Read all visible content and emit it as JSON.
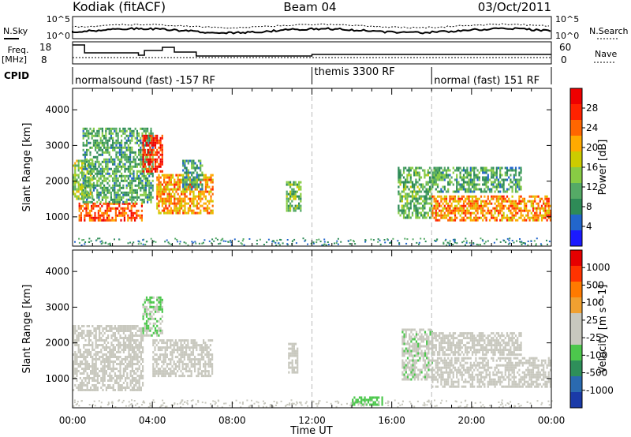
{
  "header": {
    "site": "Kodiak (fitACF)",
    "beam": "Beam 04",
    "date": "03/Oct/2011"
  },
  "status_panel": {
    "nsky_label": "N.Sky",
    "nsearch_label": "N.Search",
    "noise_ticks": [
      "10^5",
      "10^0"
    ],
    "freq_label_line1": "Freq.",
    "freq_label_line2": "[MHz]",
    "freq_ticks": [
      "18",
      "8"
    ],
    "nave_label": "Nave",
    "nave_ticks": [
      "60",
      "0"
    ],
    "cpid_label": "CPID",
    "cpid_segments": [
      {
        "label": "normalsound (fast) -157 RF",
        "start_h": 0.0
      },
      {
        "label": "themis 3300 RF",
        "start_h": 12.0
      },
      {
        "label": "normal (fast) 151 RF",
        "start_h": 18.0
      }
    ]
  },
  "colors": {
    "power_scale": [
      "#1a1aff",
      "#2266cc",
      "#2e8b57",
      "#55aa66",
      "#88cc44",
      "#cccc00",
      "#ffaa00",
      "#ff6600",
      "#ff2200",
      "#ee0000"
    ],
    "velocity_scale": [
      "#1a3aa8",
      "#2a6ab0",
      "#2e8f5a",
      "#4cc74c",
      "#c8c8be",
      "#c8c8be",
      "#f0a030",
      "#ff7a00",
      "#ff3300",
      "#e60000"
    ]
  },
  "chart_data": [
    {
      "type": "heatmap",
      "title": "",
      "xlabel": "",
      "ylabel": "Slant Range [km]",
      "xlim": [
        0,
        24
      ],
      "ylim": [
        180,
        4600
      ],
      "yticks": [
        "1000",
        "2000",
        "3000",
        "4000"
      ],
      "colorbar": {
        "label": "Power [dB]",
        "ticks": [
          "4",
          "8",
          "12",
          "16",
          "20",
          "24",
          "28"
        ],
        "range": [
          0,
          30
        ]
      },
      "regions": [
        {
          "t0": 0.3,
          "t1": 3.5,
          "r0": 900,
          "r1": 1400,
          "value": 24
        },
        {
          "t0": 0.0,
          "t1": 1.0,
          "r0": 1500,
          "r1": 2600,
          "value": 14
        },
        {
          "t0": 0.5,
          "t1": 4.0,
          "r0": 1400,
          "r1": 3500,
          "value": 10
        },
        {
          "t0": 3.5,
          "t1": 4.5,
          "r0": 2300,
          "r1": 3300,
          "value": 26
        },
        {
          "t0": 4.2,
          "t1": 7.0,
          "r0": 1100,
          "r1": 2200,
          "value": 20
        },
        {
          "t0": 5.5,
          "t1": 6.5,
          "r0": 1800,
          "r1": 2600,
          "value": 9
        },
        {
          "t0": 10.7,
          "t1": 11.4,
          "r0": 1200,
          "r1": 2000,
          "value": 12
        },
        {
          "t0": 16.3,
          "t1": 18.0,
          "r0": 1000,
          "r1": 2400,
          "value": 11
        },
        {
          "t0": 18.0,
          "t1": 24.0,
          "r0": 900,
          "r1": 1600,
          "value": 21
        },
        {
          "t0": 18.0,
          "t1": 22.5,
          "r0": 1700,
          "r1": 2400,
          "value": 10
        }
      ]
    },
    {
      "type": "heatmap",
      "title": "",
      "xlabel": "Time UT",
      "ylabel": "Slant Range [km]",
      "xlim": [
        0,
        24
      ],
      "ylim": [
        180,
        4600
      ],
      "xticks": [
        "00:00",
        "04:00",
        "08:00",
        "12:00",
        "16:00",
        "20:00",
        "00:00"
      ],
      "yticks": [
        "1000",
        "2000",
        "3000",
        "4000"
      ],
      "colorbar": {
        "label": "Velocity [m s^-1]",
        "ticks": [
          "1000",
          "500",
          "100",
          "25",
          "-25",
          "-100",
          "-500",
          "-1000"
        ],
        "range": [
          -1000,
          1000
        ]
      },
      "regions": [
        {
          "t0": 0.0,
          "t1": 3.5,
          "r0": 700,
          "r1": 2500,
          "value": 0
        },
        {
          "t0": 4.0,
          "t1": 7.0,
          "r0": 1100,
          "r1": 2100,
          "value": -120
        },
        {
          "t0": 3.5,
          "t1": 4.5,
          "r0": 2200,
          "r1": 3300,
          "value": -200
        },
        {
          "t0": 10.8,
          "t1": 11.3,
          "r0": 1200,
          "r1": 2000,
          "value": 110
        },
        {
          "t0": 14.0,
          "t1": 15.5,
          "r0": 250,
          "r1": 500,
          "value": -300
        },
        {
          "t0": 16.5,
          "t1": 18.0,
          "r0": 1000,
          "r1": 2400,
          "value": -150
        },
        {
          "t0": 18.0,
          "t1": 24.0,
          "r0": 800,
          "r1": 1600,
          "value": 0
        },
        {
          "t0": 18.0,
          "t1": 22.5,
          "r0": 1700,
          "r1": 2300,
          "value": -10
        }
      ]
    }
  ]
}
